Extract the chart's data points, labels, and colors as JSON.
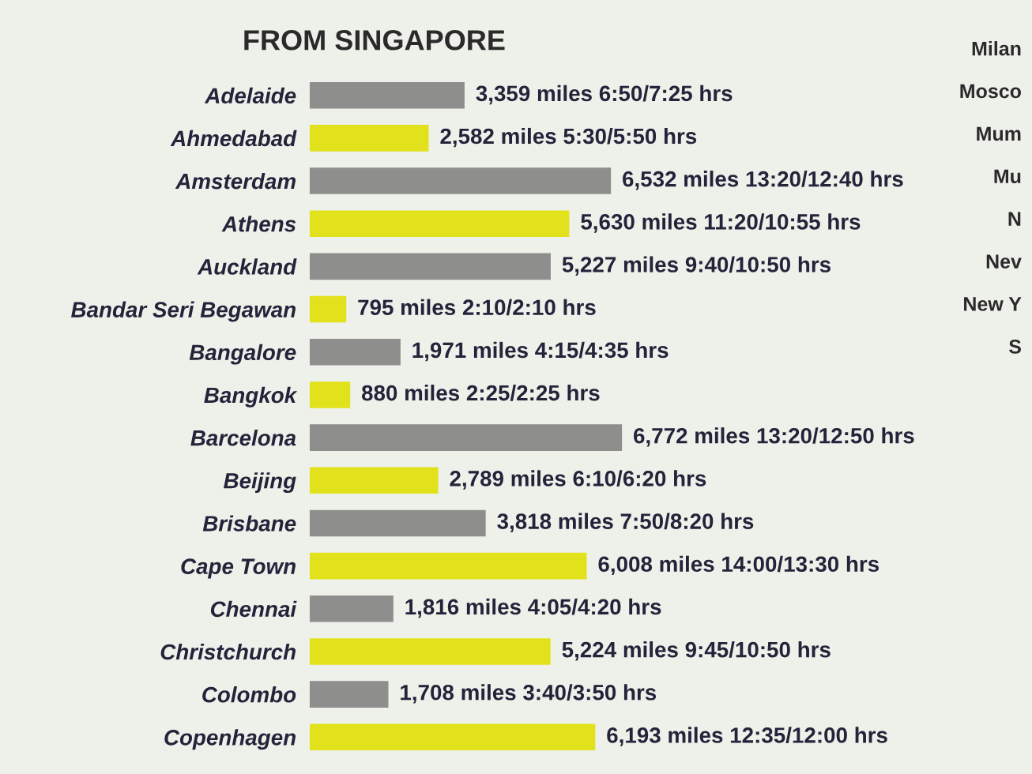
{
  "chart_data": {
    "type": "bar",
    "orientation": "horizontal",
    "title": "FROM SINGAPORE",
    "categories": [
      "Adelaide",
      "Ahmedabad",
      "Amsterdam",
      "Athens",
      "Auckland",
      "Bandar Seri Begawan",
      "Bangalore",
      "Bangkok",
      "Barcelona",
      "Beijing",
      "Brisbane",
      "Cape Town",
      "Chennai",
      "Christchurch",
      "Colombo",
      "Copenhagen"
    ],
    "values": [
      3359,
      2582,
      6532,
      5630,
      5227,
      795,
      1971,
      880,
      6772,
      2789,
      3818,
      6008,
      1816,
      5224,
      1708,
      6193
    ],
    "colors": [
      "#8e8e8c",
      "#e2e21c",
      "#8e8e8c",
      "#e2e21c",
      "#8e8e8c",
      "#e2e21c",
      "#8e8e8c",
      "#e2e21c",
      "#8e8e8c",
      "#e2e21c",
      "#8e8e8c",
      "#e2e21c",
      "#8e8e8c",
      "#e2e21c",
      "#8e8e8c",
      "#e2e21c"
    ],
    "value_labels": [
      "3,359 miles 6:50/7:25 hrs",
      "2,582 miles 5:30/5:50 hrs",
      "6,532 miles 13:20/12:40 hrs",
      "5,630 miles 11:20/10:55 hrs",
      "5,227 miles 9:40/10:50 hrs",
      "795 miles 2:10/2:10 hrs",
      "1,971 miles 4:15/4:35 hrs",
      "880 miles 2:25/2:25 hrs",
      "6,772 miles 13:20/12:50 hrs",
      "2,789 miles 6:10/6:20 hrs",
      "3,818 miles 7:50/8:20 hrs",
      "6,008 miles 14:00/13:30 hrs",
      "1,816 miles 4:05/4:20 hrs",
      "5,224 miles 9:45/10:50 hrs",
      "1,708 miles 3:40/3:50 hrs",
      "6,193 miles 12:35/12:00 hrs"
    ],
    "tick_labels": "y",
    "annotations": [
      "Milan",
      "Mosco",
      "Mum",
      "Mu",
      "N",
      "Nev",
      "New Y",
      "S"
    ]
  }
}
